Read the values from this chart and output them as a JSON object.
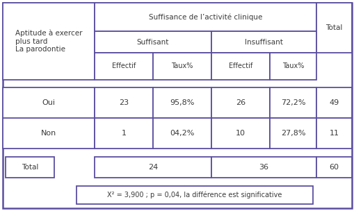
{
  "bg_color": "#ffffff",
  "border_color": "#5b4ea0",
  "header_row1_left": "Aptitude à exercer\nplus tard\nLa parodontie",
  "header_row1_mid": "Suffisance de l’activité clinique",
  "header_row1_right": "Total",
  "header_row2_left": "Suffisant",
  "header_row2_right": "Insuffisant",
  "header_row3": [
    "Effectif",
    "Taux%",
    "Effectif",
    "Taux%"
  ],
  "data_rows": [
    [
      "Oui",
      "23",
      "95,8%",
      "26",
      "72,2%",
      "49"
    ],
    [
      "Non",
      "1",
      "04,2%",
      "10",
      "27,8%",
      "11"
    ]
  ],
  "total_row": [
    "Total",
    "24",
    "36",
    "60"
  ],
  "footer": "X² = 3,900 ; p = 0,04, la différence est significative",
  "text_color": "#3a3a3a",
  "font_size": 7.5
}
